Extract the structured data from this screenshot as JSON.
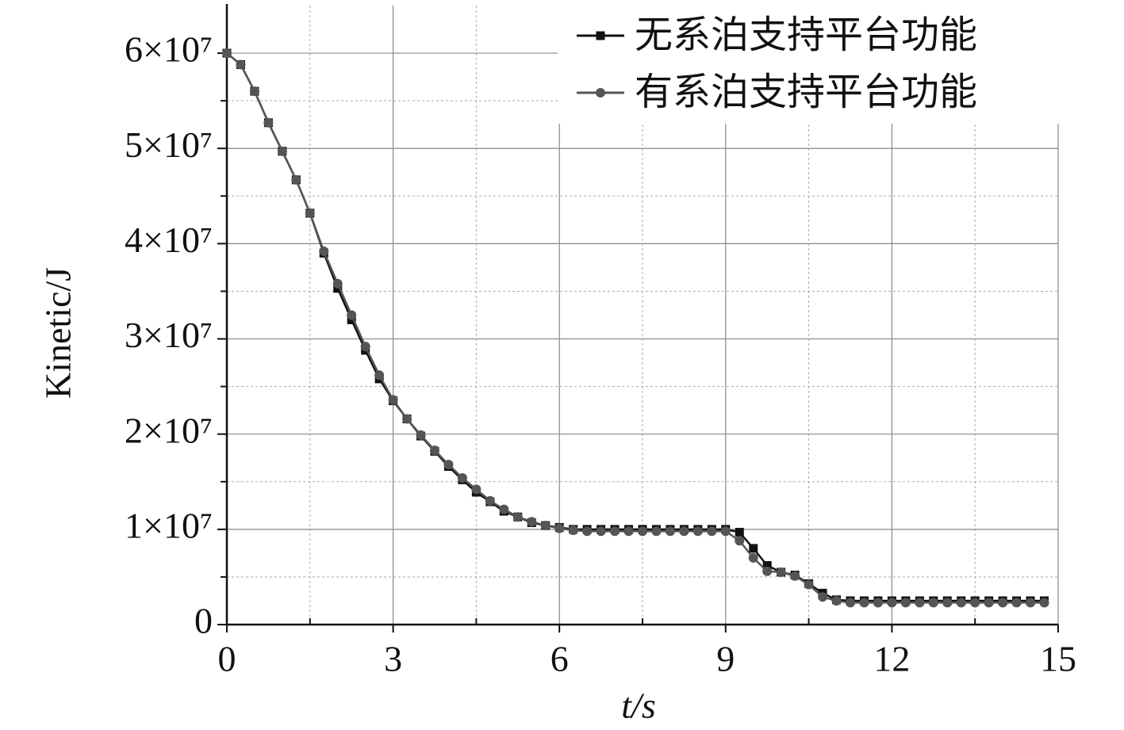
{
  "chart_data": {
    "type": "line",
    "xlabel": "t/s",
    "ylabel": "Kinetic/J",
    "xlim": [
      0,
      15
    ],
    "ylim": [
      0,
      65000000
    ],
    "xticks": [
      0,
      3,
      6,
      9,
      12,
      15
    ],
    "yticks": [
      0,
      {
        "value": 10000000,
        "label": "1×10⁷"
      },
      {
        "value": 20000000,
        "label": "2×10⁷"
      },
      {
        "value": 30000000,
        "label": "3×10⁷"
      },
      {
        "value": 40000000,
        "label": "4×10⁷"
      },
      {
        "value": 50000000,
        "label": "5×10⁷"
      },
      {
        "value": 60000000,
        "label": "6×10⁷"
      }
    ],
    "grid": true,
    "legend": "upper right",
    "x": [
      0,
      0.25,
      0.5,
      0.75,
      1,
      1.25,
      1.5,
      1.75,
      2,
      2.25,
      2.5,
      2.75,
      3,
      3.25,
      3.5,
      3.75,
      4,
      4.25,
      4.5,
      4.75,
      5,
      5.25,
      5.5,
      5.75,
      6,
      6.25,
      6.5,
      6.75,
      7,
      7.25,
      7.5,
      7.75,
      8,
      8.25,
      8.5,
      8.75,
      9,
      9.25,
      9.5,
      9.75,
      10,
      10.25,
      10.5,
      10.75,
      11,
      11.25,
      11.5,
      11.75,
      12,
      12.25,
      12.5,
      12.75,
      13,
      13.25,
      13.5,
      13.75,
      14,
      14.25,
      14.5,
      14.75
    ],
    "series": [
      {
        "name": "无系泊支持平台功能",
        "color": "#111111",
        "marker": "square",
        "values": [
          60000000,
          58800000,
          56000000,
          52700000,
          49700000,
          46700000,
          43200000,
          39000000,
          35300000,
          32000000,
          28800000,
          25800000,
          23500000,
          21600000,
          19800000,
          18200000,
          16600000,
          15200000,
          13900000,
          12900000,
          11900000,
          11300000,
          10700000,
          10400000,
          10200000,
          10000000,
          10000000,
          10000000,
          10000000,
          10000000,
          10000000,
          10000000,
          10000000,
          10000000,
          10000000,
          10000000,
          10000000,
          9700000,
          8000000,
          6200000,
          5500000,
          5200000,
          4300000,
          3300000,
          2600000,
          2500000,
          2500000,
          2500000,
          2500000,
          2500000,
          2500000,
          2500000,
          2500000,
          2500000,
          2500000,
          2500000,
          2500000,
          2500000,
          2500000,
          2500000
        ]
      },
      {
        "name": "有系泊支持平台功能",
        "color": "#555555",
        "marker": "circle",
        "values": [
          60000000,
          58800000,
          56000000,
          52700000,
          49700000,
          46700000,
          43200000,
          39200000,
          35800000,
          32500000,
          29200000,
          26200000,
          23600000,
          21600000,
          19900000,
          18300000,
          16800000,
          15400000,
          14200000,
          13000000,
          12100000,
          11300000,
          10800000,
          10400000,
          10100000,
          9900000,
          9800000,
          9800000,
          9800000,
          9800000,
          9800000,
          9800000,
          9800000,
          9800000,
          9800000,
          9800000,
          9800000,
          8800000,
          7000000,
          5600000,
          5500000,
          5100000,
          4200000,
          2900000,
          2500000,
          2300000,
          2300000,
          2300000,
          2300000,
          2300000,
          2300000,
          2300000,
          2300000,
          2300000,
          2300000,
          2300000,
          2300000,
          2300000,
          2300000,
          2300000
        ]
      }
    ]
  }
}
